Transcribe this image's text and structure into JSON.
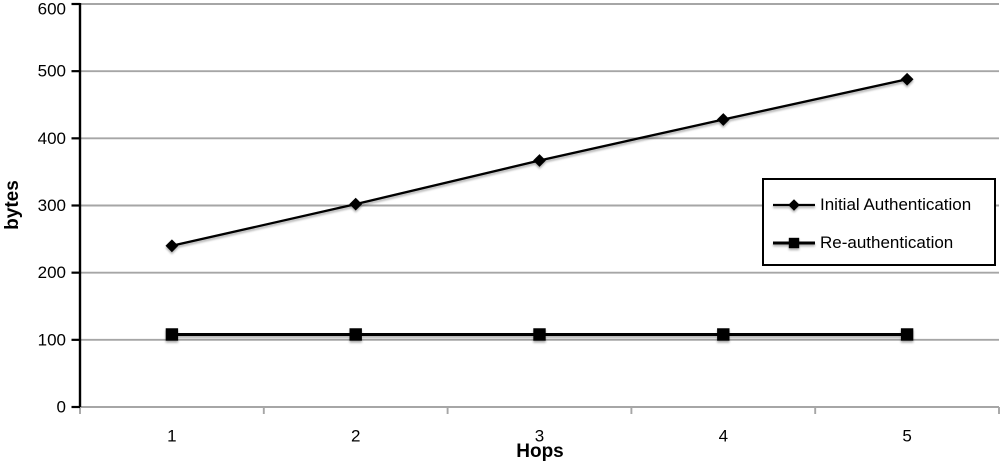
{
  "chart_data": {
    "type": "line",
    "title": "",
    "xlabel": "Hops",
    "ylabel": "bytes",
    "categories": [
      "1",
      "2",
      "3",
      "4",
      "5"
    ],
    "series": [
      {
        "name": "Initial Authentication",
        "marker": "diamond",
        "values": [
          240,
          302,
          367,
          428,
          488
        ]
      },
      {
        "name": "Re-authentication",
        "marker": "square",
        "values": [
          108,
          108,
          108,
          108,
          108
        ]
      }
    ],
    "ylim": [
      0,
      600
    ],
    "yticks": [
      0,
      100,
      200,
      300,
      400,
      500,
      600
    ],
    "grid": true,
    "legend_position": "right-inside"
  },
  "colors": {
    "series": "#000000",
    "grid": "#a6a6a6",
    "axis": "#000000",
    "text": "#000000",
    "background": "#ffffff",
    "legend_border": "#000000",
    "legend_background": "#ffffff"
  }
}
